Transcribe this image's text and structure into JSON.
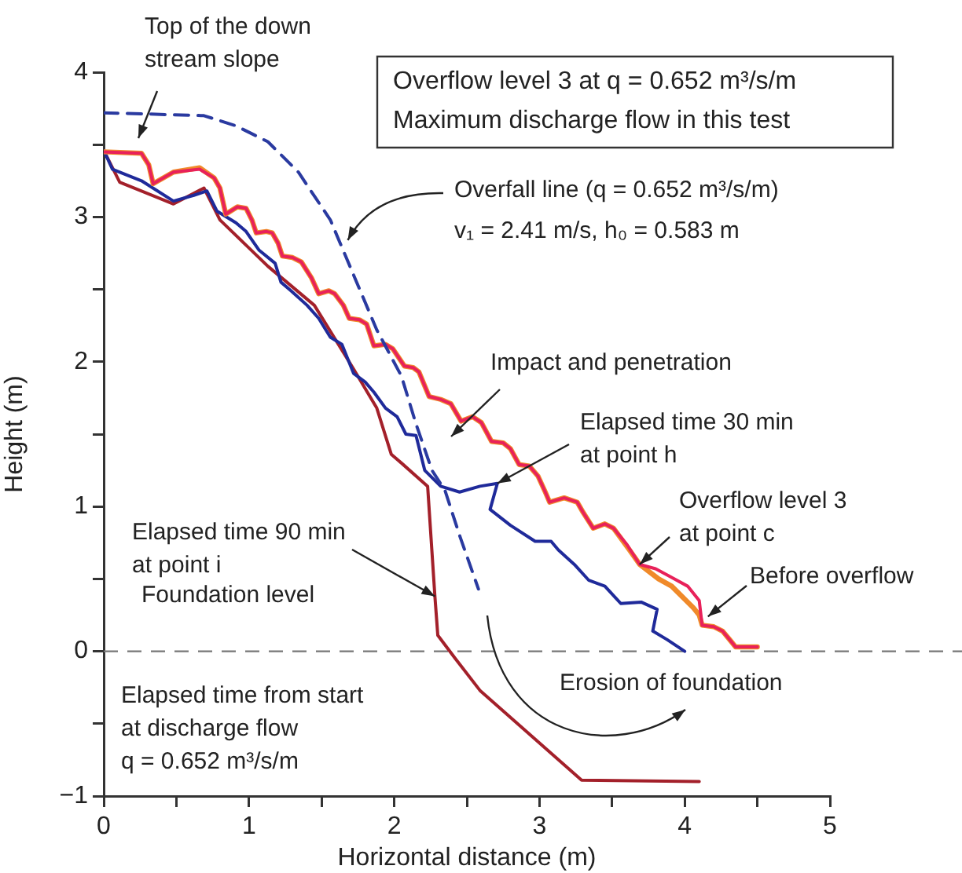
{
  "chart_data": {
    "type": "line",
    "xlabel": "Horizontal distance (m)",
    "ylabel": "Height (m)",
    "xlim": [
      0,
      5
    ],
    "ylim": [
      -1,
      4
    ],
    "xticks": [
      0,
      {
        "value": 0.5,
        "label": null
      },
      1,
      {
        "value": 1.5,
        "label": null
      },
      2,
      {
        "value": 2.5,
        "label": null
      },
      3,
      {
        "value": 3.5,
        "label": null
      },
      4,
      {
        "value": 4.5,
        "label": null
      },
      5
    ],
    "yticks": [
      {
        "value": -1,
        "label": "−1"
      },
      {
        "value": -0.5,
        "label": null
      },
      0,
      {
        "value": 0.5,
        "label": null
      },
      1,
      {
        "value": 1.5,
        "label": null
      },
      2,
      {
        "value": 2.5,
        "label": null
      },
      3,
      {
        "value": 3.5,
        "label": null
      },
      4
    ],
    "grid": false,
    "legend": false,
    "marker": "none",
    "series": [
      {
        "color": "#2a3aa0",
        "line_style": "dashed",
        "x": [
          0,
          0.69,
          0.91,
          1.13,
          1.34,
          1.56,
          1.72,
          1.88,
          2.05,
          2.15,
          2.26,
          2.35,
          2.45,
          2.58
        ],
        "values": [
          3.72,
          3.7,
          3.63,
          3.52,
          3.31,
          2.98,
          2.6,
          2.22,
          1.9,
          1.57,
          1.25,
          1.11,
          0.8,
          0.43
        ]
      },
      {
        "color": "#e8215a",
        "x": [
          0,
          0.26,
          0.31,
          0.34,
          0.48,
          0.66,
          0.76,
          0.8,
          0.84,
          0.92,
          0.98,
          1.02,
          1.05,
          1.12,
          1.16,
          1.2,
          1.23,
          1.3,
          1.36,
          1.43,
          1.48,
          1.55,
          1.59,
          1.65,
          1.69,
          1.76,
          1.81,
          1.86,
          1.94,
          1.99,
          2.07,
          2.13,
          2.17,
          2.24,
          2.32,
          2.39,
          2.46,
          2.54,
          2.6,
          2.67,
          2.75,
          2.8,
          2.86,
          2.93,
          2.99,
          3.04,
          3.07,
          3.17,
          3.26,
          3.3,
          3.37,
          3.45,
          3.51,
          3.6,
          3.69,
          3.8,
          3.91,
          4.02,
          4.1,
          4.12,
          4.2,
          4.26,
          4.31,
          4.35,
          4.5
        ],
        "values": [
          3.45,
          3.44,
          3.36,
          3.23,
          3.31,
          3.33,
          3.27,
          3.2,
          3.02,
          3.07,
          3.06,
          2.98,
          2.89,
          2.9,
          2.89,
          2.82,
          2.73,
          2.72,
          2.69,
          2.58,
          2.47,
          2.49,
          2.47,
          2.39,
          2.3,
          2.29,
          2.26,
          2.11,
          2.12,
          2.09,
          1.97,
          1.96,
          1.93,
          1.76,
          1.74,
          1.71,
          1.59,
          1.62,
          1.58,
          1.45,
          1.44,
          1.4,
          1.29,
          1.28,
          1.21,
          1.1,
          1.03,
          1.06,
          1.03,
          0.96,
          0.85,
          0.88,
          0.85,
          0.74,
          0.6,
          0.57,
          0.51,
          0.45,
          0.35,
          0.18,
          0.17,
          0.14,
          0.08,
          0.03,
          0.03
        ]
      },
      {
        "color": "#f08a2a",
        "x": [
          0,
          0.26,
          0.31,
          0.34,
          0.48,
          0.66,
          0.76,
          0.8,
          0.84,
          0.92,
          0.98,
          1.02,
          1.05,
          1.12,
          1.16,
          1.2,
          1.23,
          1.3,
          1.36,
          1.43,
          1.48,
          1.55,
          1.59,
          1.65,
          1.69,
          1.76,
          1.81,
          1.86,
          1.94,
          1.99,
          2.07,
          2.13,
          2.17,
          2.24,
          2.32,
          2.39,
          2.46,
          2.54,
          2.6,
          2.67,
          2.75,
          2.8,
          2.86,
          2.93,
          2.99,
          3.04,
          3.07,
          3.17,
          3.26,
          3.3,
          3.37,
          3.45,
          3.51,
          3.62,
          3.69,
          3.82,
          3.91,
          4.06,
          4.1,
          4.12,
          4.2,
          4.26,
          4.31,
          4.35,
          4.5
        ],
        "values": [
          3.45,
          3.44,
          3.36,
          3.23,
          3.31,
          3.34,
          3.27,
          3.2,
          3.02,
          3.07,
          3.06,
          2.98,
          2.89,
          2.9,
          2.89,
          2.82,
          2.73,
          2.72,
          2.69,
          2.58,
          2.47,
          2.49,
          2.47,
          2.39,
          2.3,
          2.29,
          2.26,
          2.11,
          2.12,
          2.09,
          1.97,
          1.96,
          1.93,
          1.76,
          1.74,
          1.71,
          1.59,
          1.62,
          1.58,
          1.45,
          1.44,
          1.4,
          1.29,
          1.28,
          1.21,
          1.1,
          1.03,
          1.06,
          1.03,
          0.96,
          0.85,
          0.88,
          0.85,
          0.7,
          0.6,
          0.5,
          0.45,
          0.3,
          0.25,
          0.18,
          0.17,
          0.14,
          0.08,
          0.03,
          0.03
        ]
      },
      {
        "color": "#1f2a9a",
        "x": [
          0,
          0.06,
          0.26,
          0.48,
          0.62,
          0.71,
          0.78,
          0.91,
          0.98,
          1.07,
          1.18,
          1.22,
          1.29,
          1.4,
          1.48,
          1.56,
          1.64,
          1.72,
          1.8,
          1.86,
          1.94,
          2.02,
          2.08,
          2.15,
          2.21,
          2.32,
          2.45,
          2.59,
          2.71,
          2.66,
          2.8,
          2.97,
          3.08,
          3.13,
          3.24,
          3.34,
          3.45,
          3.56,
          3.7,
          3.81,
          3.78,
          3.88,
          4.0
        ],
        "values": [
          3.46,
          3.33,
          3.25,
          3.11,
          3.15,
          3.18,
          3.04,
          2.96,
          2.9,
          2.77,
          2.68,
          2.55,
          2.49,
          2.39,
          2.3,
          2.17,
          2.12,
          1.92,
          1.86,
          1.79,
          1.68,
          1.62,
          1.5,
          1.49,
          1.25,
          1.14,
          1.1,
          1.14,
          1.16,
          0.98,
          0.87,
          0.76,
          0.76,
          0.7,
          0.6,
          0.49,
          0.45,
          0.33,
          0.34,
          0.29,
          0.14,
          0.08,
          0.0
        ]
      },
      {
        "color": "#a3202a",
        "x": [
          0,
          0.11,
          0.48,
          0.69,
          0.8,
          1.13,
          1.45,
          1.72,
          1.88,
          1.98,
          2.05,
          2.23,
          2.28,
          2.3,
          2.42,
          2.59,
          3.29,
          4.1
        ],
        "values": [
          3.46,
          3.24,
          3.09,
          3.2,
          2.98,
          2.66,
          2.39,
          1.95,
          1.68,
          1.36,
          1.3,
          1.14,
          0.38,
          0.11,
          -0.05,
          -0.27,
          -0.89,
          -0.9
        ]
      }
    ],
    "ref_lines": [
      {
        "axis": "y",
        "value": 0,
        "label": "Foundation level",
        "color": "#777777",
        "line_style": "dashed"
      }
    ],
    "annotations": [
      "Top of the down stream slope",
      "Overflow level 3 at q = 0.652 m³/s/m\nMaximum discharge flow in this test",
      {
        "text": "Overfall line (q = 0.652 m³/s/m)",
        "x": 1.68,
        "y": 2.84
      },
      "v₁ = 2.41 m/s, h₀ = 0.583 m",
      "Impact and penetration",
      {
        "text": "Elapsed time 30 min at point h",
        "x": 2.71,
        "y": 1.16
      },
      {
        "text": "Overflow level 3 at point c",
        "x": 3.69,
        "y": 0.6
      },
      {
        "text": "Before overflow",
        "x": 4.16,
        "y": 0.24
      },
      {
        "text": "Elapsed time 90 min at point i",
        "x": 2.28,
        "y": 0.38
      },
      "Elapsed time from start at discharge flow q = 0.652 m³/s/m",
      "Erosion of foundation"
    ]
  }
}
